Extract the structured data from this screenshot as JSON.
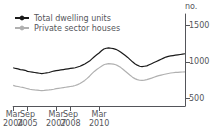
{
  "chart_data": {
    "type": "line",
    "categories": [
      "Mar\n2004",
      null,
      null,
      null,
      null,
      null,
      "Sep\n2005",
      null,
      null,
      null,
      null,
      null,
      null,
      null,
      null,
      null,
      null,
      null,
      "Mar\n2007",
      null,
      null,
      null,
      null,
      null,
      "Sep\n2008",
      null,
      null,
      null,
      null,
      null,
      null,
      null,
      null,
      null,
      null,
      null,
      "Mar\n2010",
      null,
      null,
      null,
      null,
      null,
      null,
      null,
      null,
      null,
      null,
      null,
      null,
      null,
      null,
      null,
      null,
      null,
      null,
      null,
      null,
      null,
      null,
      null,
      null,
      null,
      null,
      null,
      null,
      null,
      null,
      null,
      null,
      null,
      null,
      null,
      null
    ],
    "series": [
      {
        "name": "Total dwelling units",
        "color": "#1a1a1a",
        "values": [
          920,
          910,
          905,
          895,
          890,
          885,
          870,
          865,
          860,
          855,
          850,
          845,
          840,
          845,
          850,
          855,
          865,
          875,
          880,
          885,
          890,
          895,
          900,
          905,
          910,
          915,
          920,
          930,
          940,
          955,
          970,
          990,
          1010,
          1040,
          1070,
          1095,
          1120,
          1150,
          1175,
          1185,
          1190,
          1185,
          1180,
          1170,
          1155,
          1135,
          1110,
          1085,
          1060,
          1030,
          1000,
          975,
          955,
          940,
          935,
          940,
          945,
          960,
          975,
          990,
          1005,
          1020,
          1035,
          1050,
          1065,
          1075,
          1080,
          1085,
          1090,
          1095,
          1100,
          1105,
          1110
        ]
      },
      {
        "name": "Private sector houses",
        "color": "#b0b0b0",
        "values": [
          680,
          670,
          665,
          658,
          652,
          645,
          635,
          628,
          622,
          618,
          615,
          612,
          610,
          612,
          615,
          618,
          622,
          628,
          635,
          640,
          645,
          650,
          655,
          660,
          665,
          670,
          678,
          690,
          705,
          725,
          748,
          775,
          805,
          840,
          870,
          895,
          918,
          940,
          960,
          970,
          975,
          972,
          968,
          960,
          945,
          925,
          900,
          872,
          845,
          818,
          792,
          772,
          758,
          750,
          748,
          752,
          758,
          768,
          778,
          790,
          802,
          812,
          820,
          828,
          835,
          842,
          848,
          852,
          856,
          858,
          860,
          862,
          864
        ]
      }
    ],
    "ylabel": "no.",
    "ylim": [
      400,
      1650
    ],
    "yticks": [
      500,
      1000,
      1500
    ],
    "grid": false,
    "legend": "upper left"
  }
}
